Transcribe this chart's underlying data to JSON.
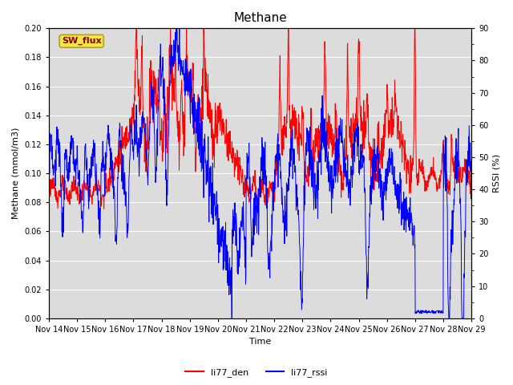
{
  "title": "Methane",
  "ylabel_left": "Methane (mmol/m3)",
  "ylabel_right": "RSSI (%)",
  "xlabel": "Time",
  "ylim_left": [
    0.0,
    0.2
  ],
  "ylim_right": [
    0,
    90
  ],
  "yticks_left": [
    0.0,
    0.02,
    0.04,
    0.06,
    0.08,
    0.1,
    0.12,
    0.14,
    0.16,
    0.18,
    0.2
  ],
  "yticks_right": [
    0,
    10,
    20,
    30,
    40,
    50,
    60,
    70,
    80,
    90
  ],
  "xtick_labels": [
    "Nov 14",
    "Nov 15",
    "Nov 16",
    "Nov 17",
    "Nov 18",
    "Nov 19",
    "Nov 20",
    "Nov 21",
    "Nov 22",
    "Nov 23",
    "Nov 24",
    "Nov 25",
    "Nov 26",
    "Nov 27",
    "Nov 28",
    "Nov 29"
  ],
  "sw_flux_label": "SW_flux",
  "legend_entries": [
    "li77_den",
    "li77_rssi"
  ],
  "line_colors": [
    "red",
    "blue"
  ],
  "fig_bg_color": "#ffffff",
  "plot_bg_color": "#dcdcdc",
  "grid_color": "#ffffff",
  "title_fontsize": 11,
  "label_fontsize": 8,
  "tick_fontsize": 7,
  "legend_fontsize": 8
}
